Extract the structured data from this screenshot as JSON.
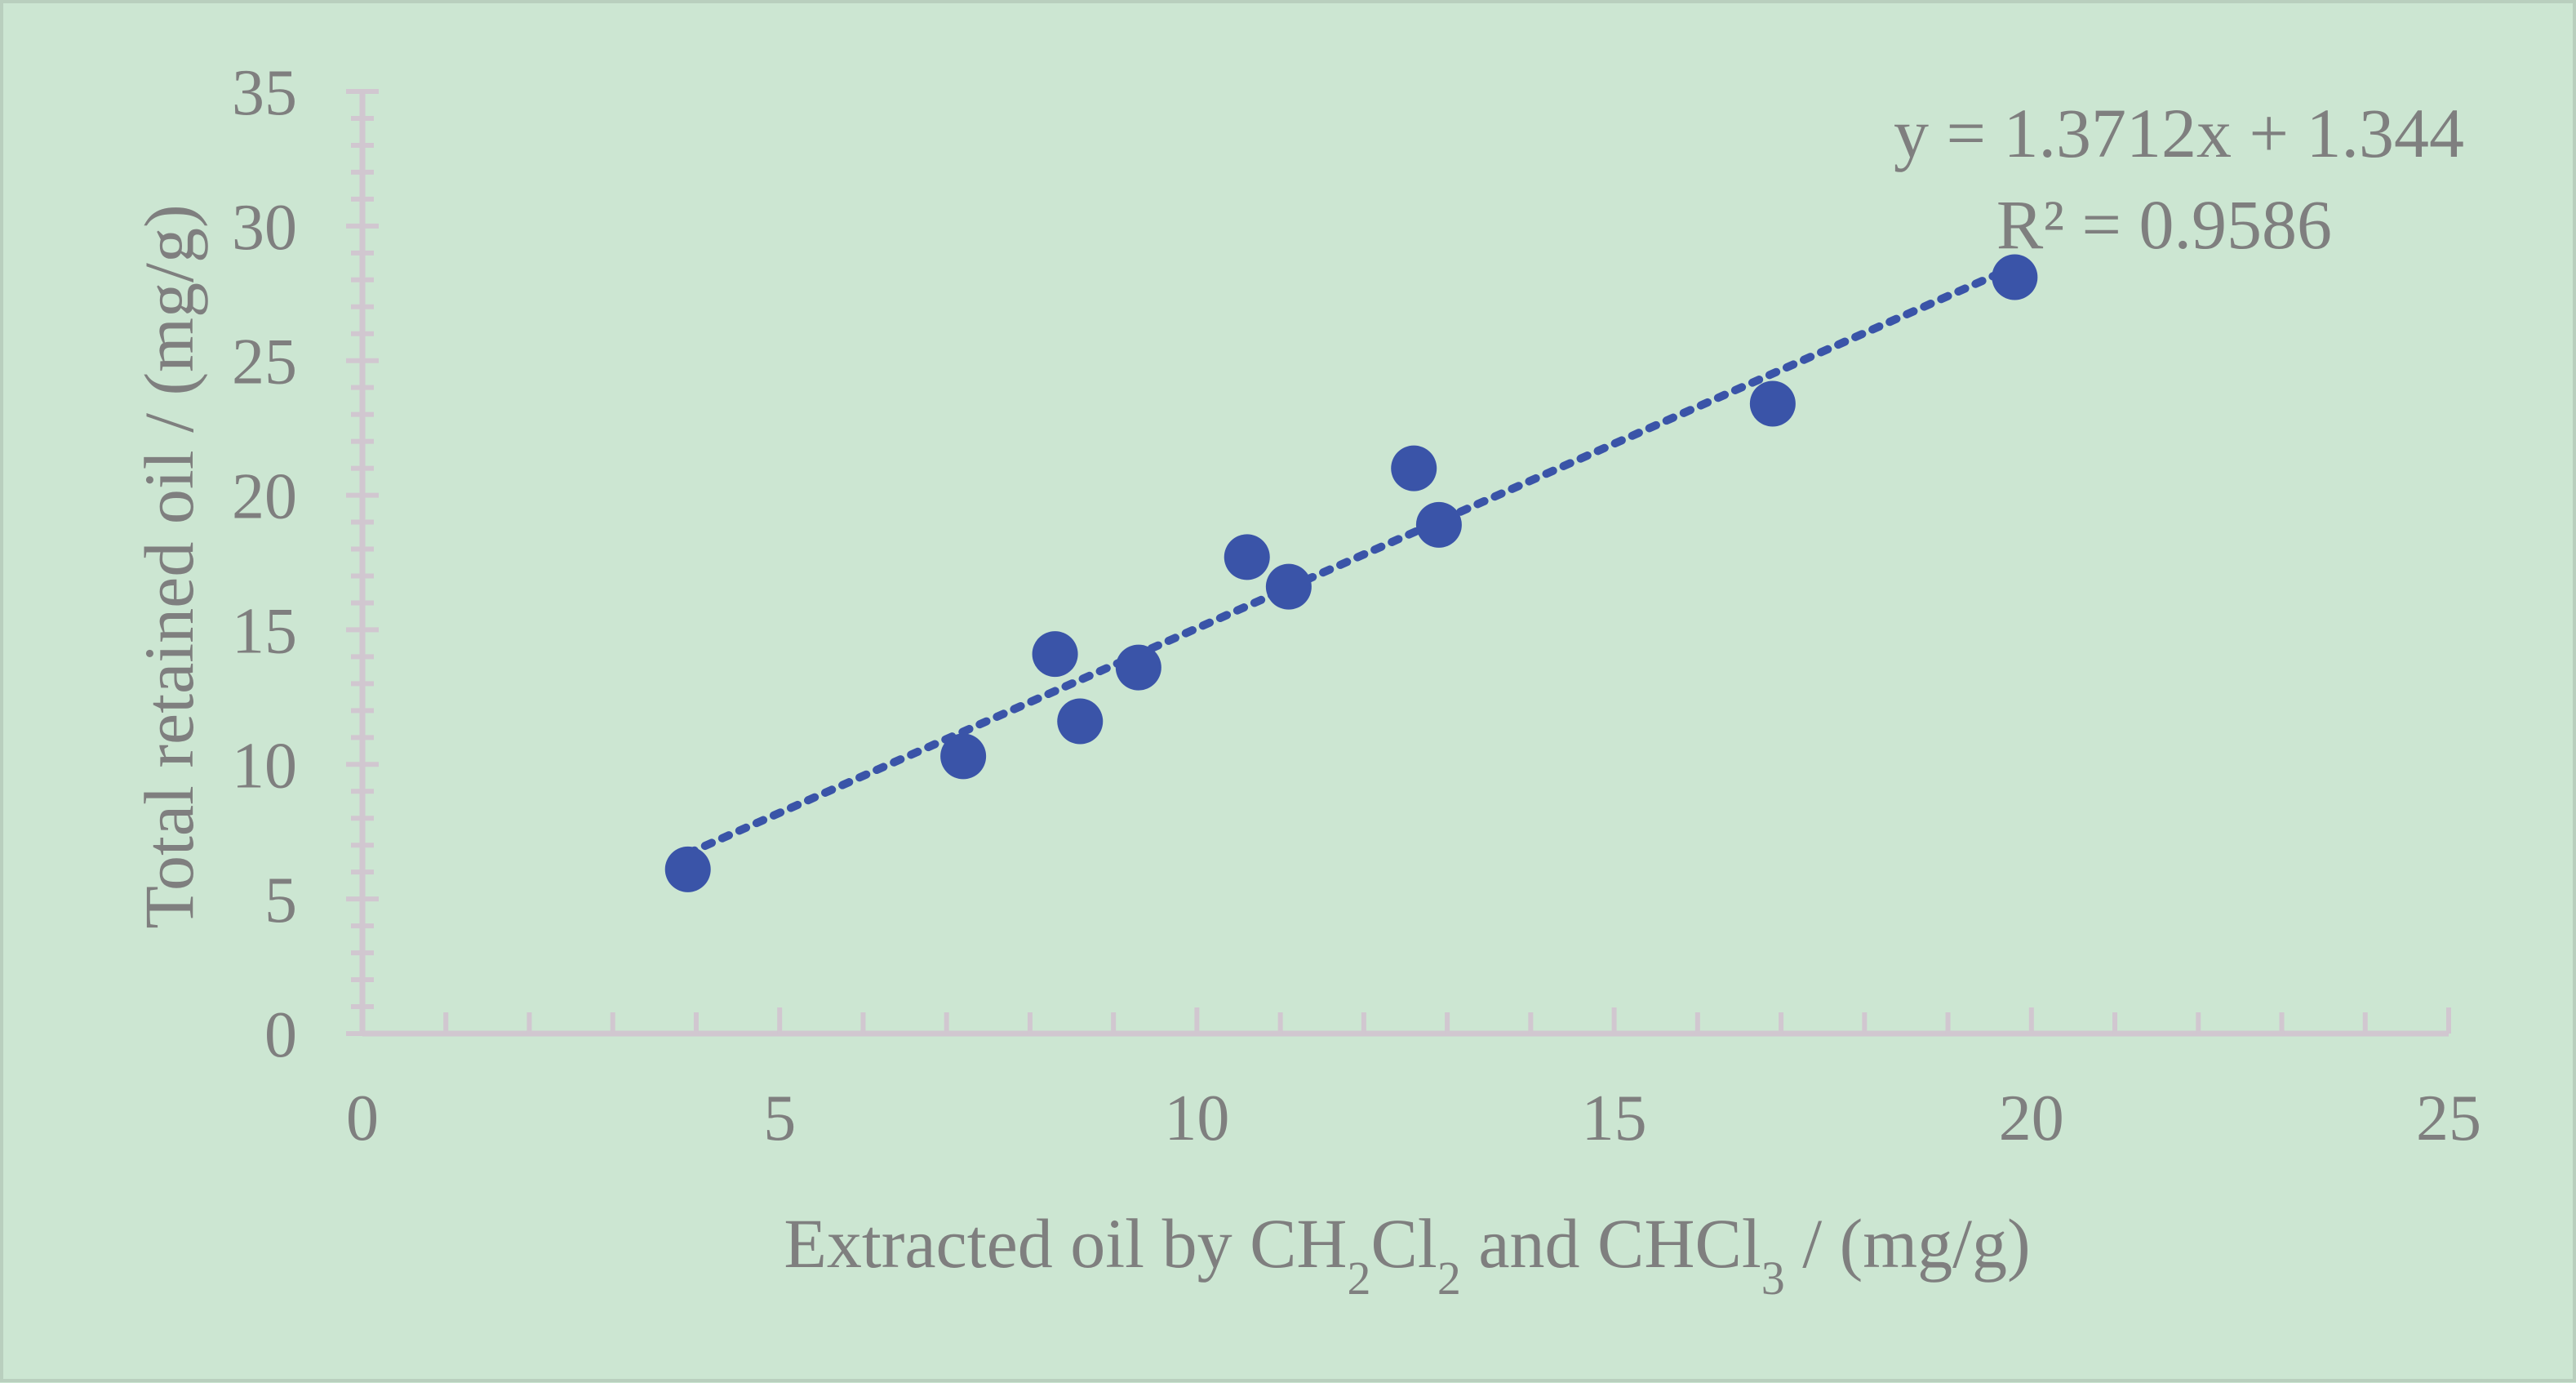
{
  "chart_data": {
    "type": "scatter",
    "xlabel": "Extracted oil by CH2Cl2 and CHCl3 / (mg/g)",
    "ylabel": "Total retained oil / (mg/g)",
    "xlim": [
      0,
      25
    ],
    "ylim": [
      0,
      35
    ],
    "xticks": [
      0,
      5,
      10,
      15,
      20,
      25
    ],
    "yticks": [
      0,
      5,
      10,
      15,
      20,
      25,
      30,
      35
    ],
    "grid": false,
    "colors": {
      "marker": "#3a54a8",
      "trendline": "#3a54a8",
      "axis": "#d1c7d0",
      "text": "#7f7f7f",
      "background": "#cce6d2"
    },
    "series": [
      {
        "x": [
          3.9,
          7.2,
          8.3,
          8.6,
          9.3,
          10.6,
          11.1,
          12.6,
          12.9,
          16.9,
          19.8
        ],
        "y": [
          6.1,
          10.3,
          14.1,
          11.6,
          13.6,
          17.7,
          16.6,
          21.0,
          18.9,
          23.4,
          28.1
        ]
      }
    ],
    "trendline": {
      "type": "linear",
      "slope": 1.3712,
      "intercept": 1.344,
      "x_range": [
        3.9,
        19.8
      ],
      "style": "dotted",
      "equation": "y = 1.3712x + 1.344",
      "r_squared": "R² = 0.9586"
    }
  }
}
